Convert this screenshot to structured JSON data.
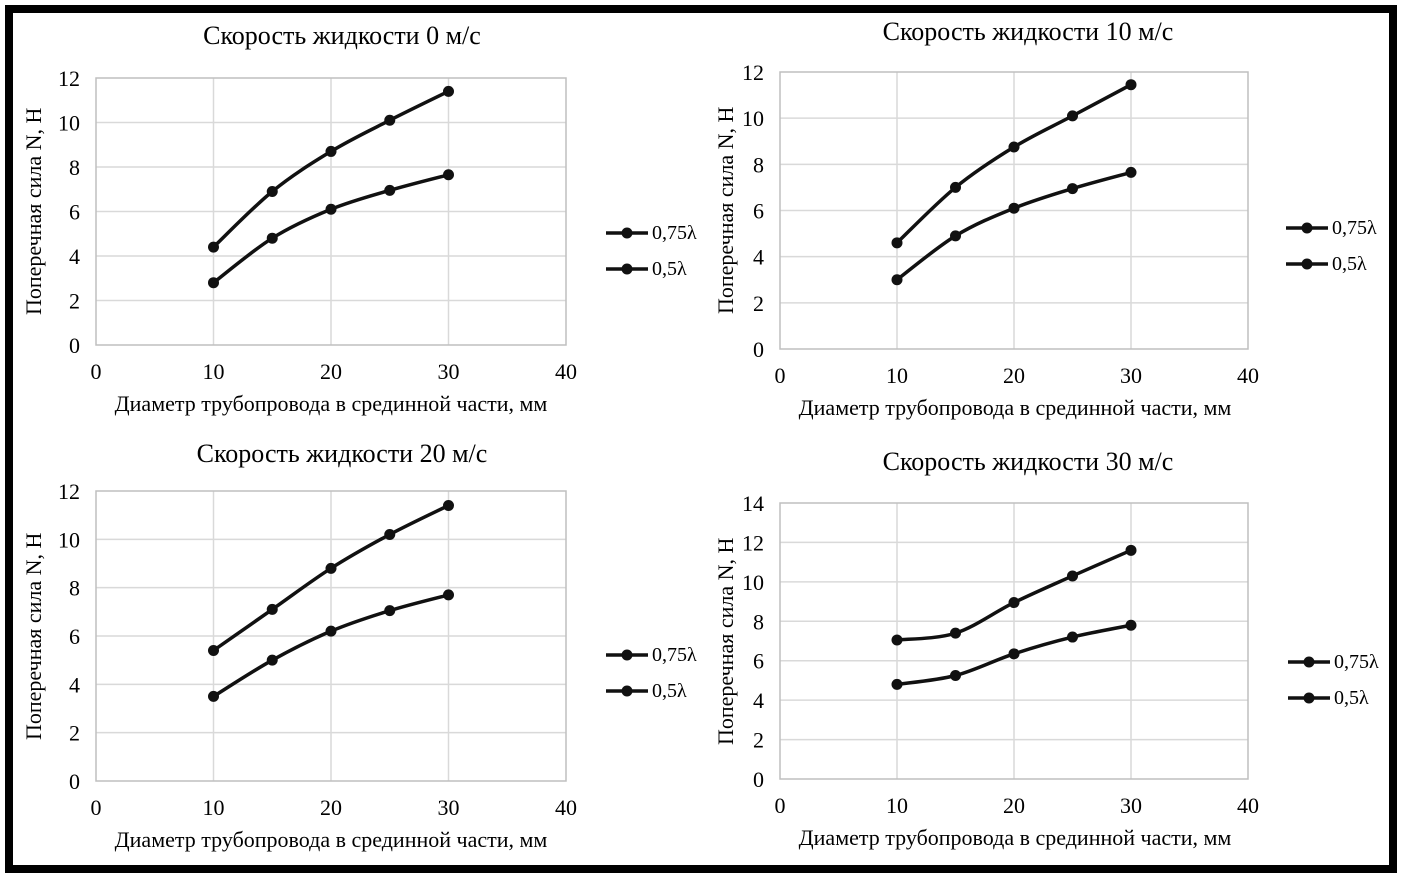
{
  "page": {
    "background": "#ffffff",
    "frame_color": "#000000"
  },
  "shared": {
    "colors": {
      "series": "#111111",
      "gridline": "#d9d9d9",
      "plot_border": "#bfbfbf",
      "text": "#000000"
    }
  },
  "chart_data": [
    {
      "type": "line",
      "title": "Скорость жидкости 0 м/с",
      "xlabel": "Диаметр трубопровода в срединной части, мм",
      "ylabel": "Поперечная сила N, Н",
      "x": [
        10,
        15,
        20,
        25,
        30
      ],
      "series": [
        {
          "name": "0,75λ",
          "values": [
            4.4,
            6.9,
            8.7,
            10.1,
            11.4
          ]
        },
        {
          "name": "0,5λ",
          "values": [
            2.8,
            4.8,
            6.1,
            6.95,
            7.65
          ]
        }
      ],
      "xlim": [
        0,
        40
      ],
      "ylim": [
        0,
        12
      ],
      "x_ticks": [
        0,
        10,
        20,
        30,
        40
      ],
      "y_ticks": [
        0,
        2,
        4,
        6,
        8,
        10,
        12
      ],
      "grid": true,
      "legend_position": "right",
      "legend": [
        "0,75λ",
        "0,5λ"
      ]
    },
    {
      "type": "line",
      "title": "Скорость жидкости 10 м/с",
      "xlabel": "Диаметр трубопровода в срединной части, мм",
      "ylabel": "Поперечная сила N, Н",
      "x": [
        10,
        15,
        20,
        25,
        30
      ],
      "series": [
        {
          "name": "0,75λ",
          "values": [
            4.6,
            7.0,
            8.75,
            10.1,
            11.45
          ]
        },
        {
          "name": "0,5λ",
          "values": [
            3.0,
            4.9,
            6.1,
            6.95,
            7.65
          ]
        }
      ],
      "xlim": [
        0,
        40
      ],
      "ylim": [
        0,
        12
      ],
      "x_ticks": [
        0,
        10,
        20,
        30,
        40
      ],
      "y_ticks": [
        0,
        2,
        4,
        6,
        8,
        10,
        12
      ],
      "grid": true,
      "legend_position": "right",
      "legend": [
        "0,75λ",
        "0,5λ"
      ]
    },
    {
      "type": "line",
      "title": "Скорость жидкости 20 м/с",
      "xlabel": "Диаметр трубопровода в срединной части, мм",
      "ylabel": "Поперечная сила N, Н",
      "x": [
        10,
        15,
        20,
        25,
        30
      ],
      "series": [
        {
          "name": "0,75λ",
          "values": [
            5.4,
            7.1,
            8.8,
            10.2,
            11.4
          ]
        },
        {
          "name": "0,5λ",
          "values": [
            3.5,
            5.0,
            6.2,
            7.05,
            7.7
          ]
        }
      ],
      "xlim": [
        0,
        40
      ],
      "ylim": [
        0,
        12
      ],
      "x_ticks": [
        0,
        10,
        20,
        30,
        40
      ],
      "y_ticks": [
        0,
        2,
        4,
        6,
        8,
        10,
        12
      ],
      "grid": true,
      "legend_position": "right",
      "legend": [
        "0,75λ",
        "0,5λ"
      ]
    },
    {
      "type": "line",
      "title": "Скорость жидкости 30 м/с",
      "xlabel": "Диаметр трубопровода в срединной части, мм",
      "ylabel": "Поперечная сила N, Н",
      "x": [
        10,
        15,
        20,
        25,
        30
      ],
      "series": [
        {
          "name": "0,75λ",
          "values": [
            7.05,
            7.4,
            8.95,
            10.3,
            11.6
          ]
        },
        {
          "name": "0,5λ",
          "values": [
            4.8,
            5.25,
            6.35,
            7.2,
            7.8
          ]
        }
      ],
      "xlim": [
        0,
        40
      ],
      "ylim": [
        0,
        14
      ],
      "x_ticks": [
        0,
        10,
        20,
        30,
        40
      ],
      "y_ticks": [
        0,
        2,
        4,
        6,
        8,
        10,
        12,
        14
      ],
      "grid": true,
      "legend_position": "right",
      "legend": [
        "0,75λ",
        "0,5λ"
      ]
    }
  ]
}
